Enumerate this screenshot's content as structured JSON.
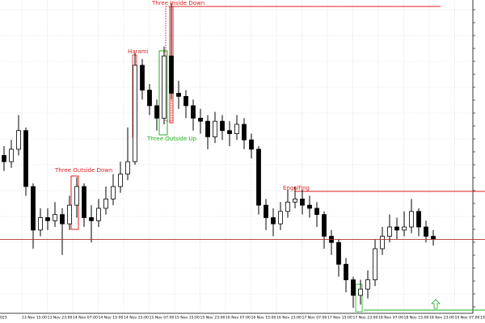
{
  "chart_data": {
    "type": "candlestick",
    "ylim": [
      0,
      100
    ],
    "open": [
      50,
      48,
      52,
      58,
      40,
      26,
      30,
      29,
      31,
      28,
      34,
      40,
      30,
      29,
      33,
      36,
      40,
      44,
      48,
      79,
      71,
      66,
      62,
      82,
      70,
      69,
      66,
      62,
      61,
      56,
      61,
      58,
      57,
      60,
      55,
      52,
      34,
      30,
      28,
      32,
      35,
      36,
      34,
      33,
      31,
      24,
      22,
      15,
      10,
      5,
      7,
      10,
      20,
      24,
      27,
      26,
      27,
      32,
      27,
      24
    ],
    "high": [
      53,
      55,
      63,
      59,
      41,
      33,
      33,
      35,
      33,
      37,
      43,
      41,
      34,
      36,
      40,
      44,
      48,
      59,
      83,
      81,
      73,
      68,
      85,
      99,
      74,
      71,
      68,
      65,
      63,
      64,
      63,
      61,
      63,
      62,
      57,
      53,
      36,
      33,
      35,
      39,
      40,
      39,
      37,
      35,
      32,
      26,
      23,
      17,
      11,
      10,
      13,
      23,
      27,
      31,
      30,
      32,
      36,
      33,
      29,
      26
    ],
    "low": [
      45,
      46,
      50,
      37,
      20,
      24,
      26,
      27,
      18,
      26,
      30,
      27,
      22,
      27,
      31,
      34,
      38,
      42,
      47,
      68,
      63,
      58,
      60,
      68,
      65,
      62,
      58,
      57,
      52,
      54,
      55,
      53,
      55,
      52,
      49,
      31,
      26,
      24,
      26,
      30,
      33,
      31,
      30,
      27,
      20,
      18,
      11,
      6,
      1,
      2,
      4,
      8,
      18,
      22,
      23,
      24,
      25,
      24,
      22,
      21
    ],
    "close": [
      48,
      52,
      58,
      40,
      26,
      30,
      29,
      31,
      28,
      34,
      40,
      30,
      29,
      33,
      36,
      40,
      44,
      48,
      79,
      71,
      66,
      62,
      82,
      70,
      69,
      66,
      62,
      61,
      56,
      61,
      58,
      57,
      60,
      55,
      52,
      34,
      30,
      28,
      32,
      35,
      36,
      34,
      33,
      31,
      24,
      22,
      15,
      10,
      5,
      7,
      10,
      20,
      24,
      27,
      26,
      27,
      32,
      27,
      24,
      23
    ],
    "price_line": 23,
    "xtick_labels": [
      "025",
      "13 Nov 15:00",
      "13 Nov 23:00",
      "14 Nov 07:00",
      "14 Nov 15:00",
      "14 Nov 23:00",
      "15 Nov 07:00",
      "15 Nov 15:00",
      "15 Nov 23:00",
      "16 Nov 07:00",
      "16 Nov 15:00",
      "16 Nov 23:00",
      "17 Nov 07:00",
      "17 Nov 15:00",
      "17 Nov 23:00",
      "18 Nov 07:00",
      "18 Nov 15:00",
      "18 Nov 23:00",
      "19 Nov 07:00",
      "19 Nov 15:00"
    ],
    "annotations": [
      {
        "label": "Three Inside Down"
      },
      {
        "label": "Harami"
      },
      {
        "label": "Three Outside Up"
      },
      {
        "label": "Three Outside Down"
      },
      {
        "label": "Engulfing"
      }
    ]
  }
}
